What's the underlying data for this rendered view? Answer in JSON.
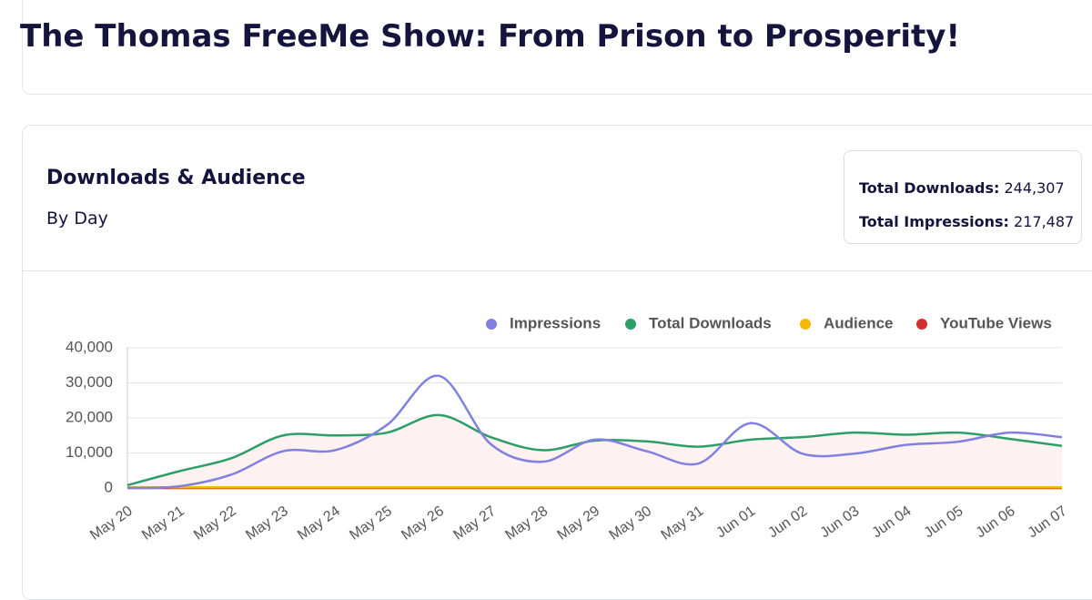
{
  "header": {
    "title": "The Thomas FreeMe Show: From Prison to Prosperity!"
  },
  "card": {
    "title": "Downloads & Audience",
    "subtitle": "By Day",
    "totals": [
      {
        "label": "Total Downloads:",
        "value": "244,307"
      },
      {
        "label": "Total Impressions:",
        "value": "217,487"
      }
    ]
  },
  "chart_data": {
    "type": "line",
    "categories": [
      "May 20",
      "May 21",
      "May 22",
      "May 23",
      "May 24",
      "May 25",
      "May 26",
      "May 27",
      "May 28",
      "May 29",
      "May 30",
      "May 31",
      "Jun 01",
      "Jun 02",
      "Jun 03",
      "Jun 04",
      "Jun 05",
      "Jun 06",
      "Jun 07"
    ],
    "series": [
      {
        "name": "Impressions",
        "color": "#8080e0",
        "values": [
          0,
          500,
          3800,
          10500,
          10800,
          18000,
          32000,
          12500,
          7500,
          13800,
          10500,
          7000,
          18500,
          9800,
          9800,
          12300,
          13200,
          15800,
          14500
        ]
      },
      {
        "name": "Total Downloads",
        "color": "#2e9e68",
        "values": [
          800,
          4800,
          8500,
          15000,
          15000,
          15800,
          20800,
          14500,
          10800,
          13500,
          13300,
          11800,
          13800,
          14500,
          15800,
          15200,
          15800,
          14000,
          12000
        ]
      },
      {
        "name": "Audience",
        "color": "#f5b800",
        "values": [
          200,
          200,
          200,
          200,
          200,
          200,
          200,
          200,
          200,
          200,
          200,
          200,
          200,
          200,
          200,
          200,
          200,
          200,
          200
        ]
      },
      {
        "name": "YouTube Views",
        "color": "#d32f2f",
        "values": [
          0,
          0,
          0,
          0,
          0,
          0,
          0,
          0,
          0,
          0,
          0,
          0,
          0,
          0,
          0,
          0,
          0,
          0,
          0
        ]
      }
    ],
    "ylim": [
      0,
      40000
    ],
    "yticks": [
      0,
      {
        "value": 10000,
        "label": "10,000"
      },
      {
        "value": 20000,
        "label": "20,000"
      },
      {
        "value": 30000,
        "label": "30,000"
      },
      {
        "value": 40000,
        "label": "40,000"
      }
    ],
    "grid": true,
    "legend": "top-right"
  }
}
